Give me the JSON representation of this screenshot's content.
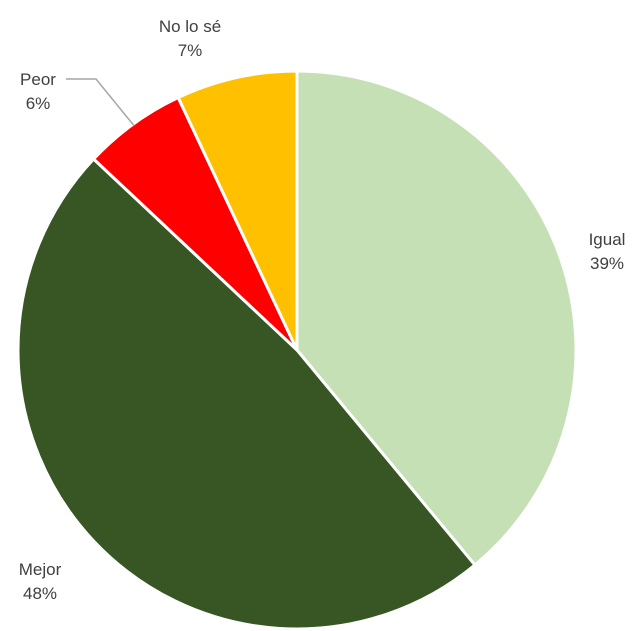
{
  "chart_data": {
    "type": "pie",
    "title": "",
    "start_angle_deg": 0,
    "direction": "clockwise",
    "slices": [
      {
        "name": "Igual",
        "value": 39,
        "label": "39%",
        "color": "#c5e0b4"
      },
      {
        "name": "Mejor",
        "value": 48,
        "label": "48%",
        "color": "#375623"
      },
      {
        "name": "Peor",
        "value": 6,
        "label": "6%",
        "color": "#ff0000"
      },
      {
        "name": "No lo sé",
        "value": 7,
        "label": "7%",
        "color": "#ffc000"
      }
    ],
    "slice_border_color": "#ffffff",
    "leader_line_color": "#a6a6a6",
    "legend": "none",
    "labels": "outside"
  }
}
